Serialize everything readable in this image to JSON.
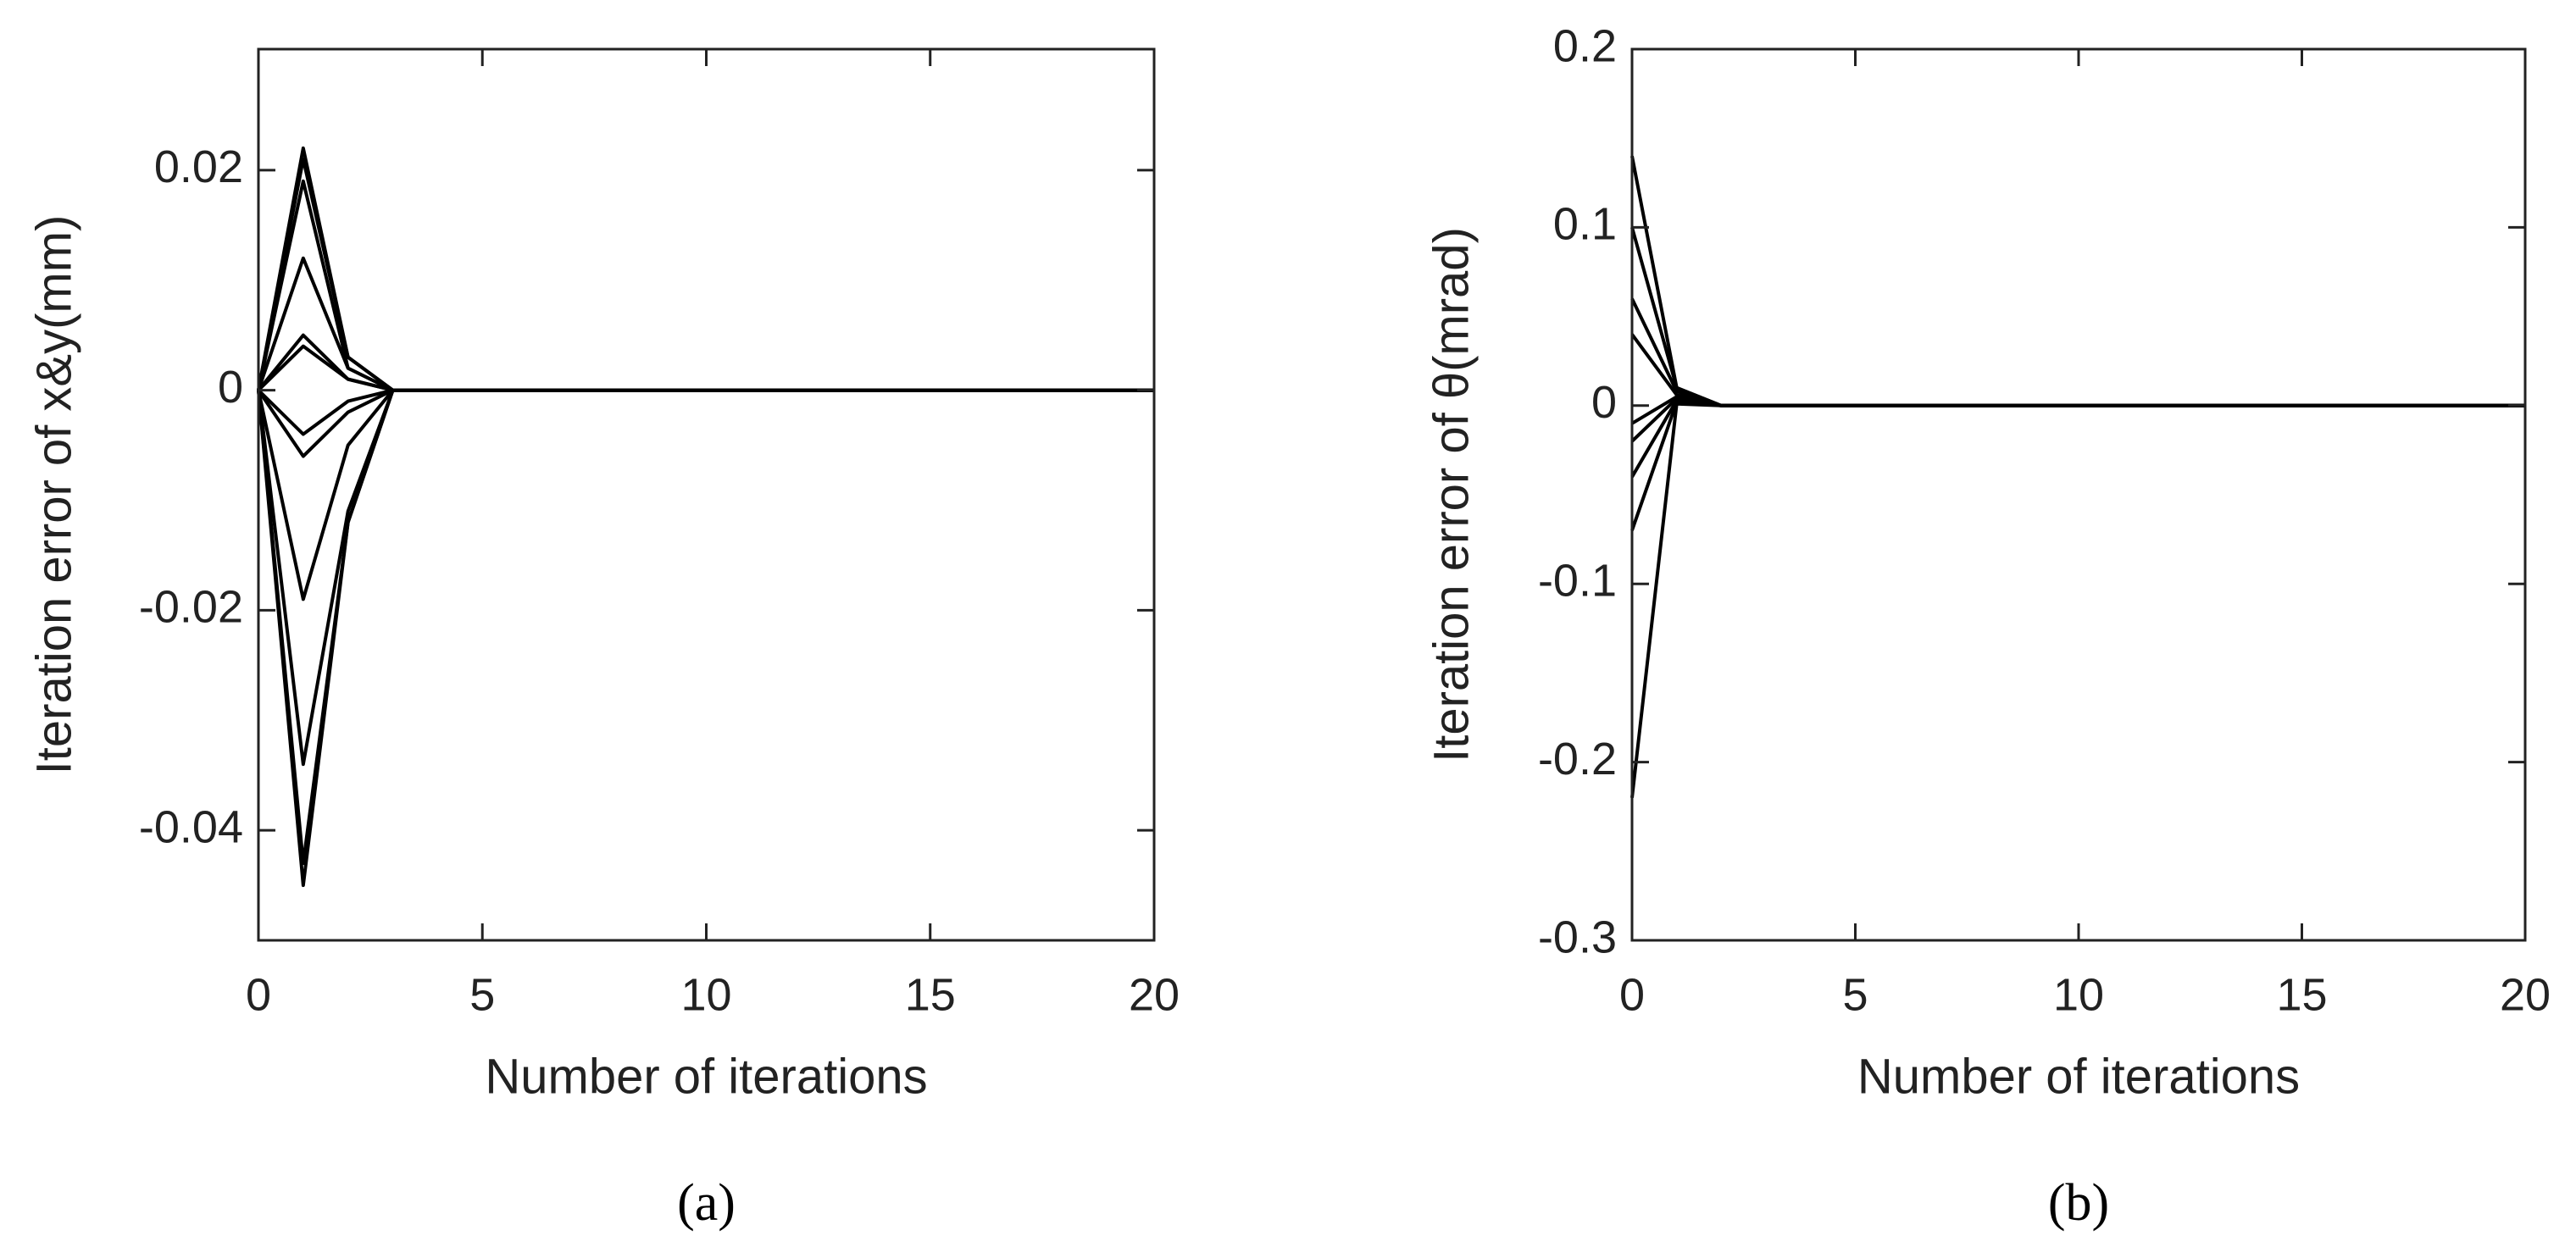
{
  "chart_data": [
    {
      "type": "line",
      "label": "(a)",
      "x_label": "Number of iterations",
      "y_label": "Iteration error of x&y(mm)",
      "x": [
        0,
        1,
        2,
        3,
        4,
        20
      ],
      "xlim": [
        0,
        20
      ],
      "xticks": [
        0,
        5,
        10,
        15,
        20
      ],
      "ylim": [
        -0.05,
        0.031
      ],
      "yticks": [
        -0.04,
        -0.02,
        0,
        0.02
      ],
      "color": "#000000",
      "series": [
        {
          "values": [
            0,
            0.022,
            0.003,
            0,
            0,
            0
          ]
        },
        {
          "values": [
            0,
            0.021,
            0.003,
            0,
            0,
            0
          ]
        },
        {
          "values": [
            0,
            0.019,
            0.002,
            0,
            0,
            0
          ]
        },
        {
          "values": [
            0,
            0.012,
            0.002,
            0,
            0,
            0
          ]
        },
        {
          "values": [
            0,
            0.005,
            0.001,
            0,
            0,
            0
          ]
        },
        {
          "values": [
            0,
            0.004,
            0.001,
            0,
            0,
            0
          ]
        },
        {
          "values": [
            0,
            -0.004,
            -0.001,
            0,
            0,
            0
          ]
        },
        {
          "values": [
            0,
            -0.006,
            -0.002,
            0,
            0,
            0
          ]
        },
        {
          "values": [
            0,
            -0.019,
            -0.005,
            0,
            0,
            0
          ]
        },
        {
          "values": [
            0,
            -0.034,
            -0.011,
            0,
            0,
            0
          ]
        },
        {
          "values": [
            0,
            -0.043,
            -0.012,
            0,
            0,
            0
          ]
        },
        {
          "values": [
            0,
            -0.045,
            -0.012,
            0,
            0,
            0
          ]
        }
      ]
    },
    {
      "type": "line",
      "label": "(b)",
      "x_label": "Number of iterations",
      "y_label": "Iteration error of θ(mrad)",
      "x": [
        0,
        1,
        2,
        20
      ],
      "xlim": [
        0,
        20
      ],
      "xticks": [
        0,
        5,
        10,
        15,
        20
      ],
      "ylim": [
        -0.3,
        0.2
      ],
      "yticks": [
        -0.3,
        -0.2,
        -0.1,
        0,
        0.1,
        0.2
      ],
      "color": "#000000",
      "series": [
        {
          "values": [
            0.14,
            0.01,
            0,
            0
          ]
        },
        {
          "values": [
            0.1,
            0.01,
            0,
            0
          ]
        },
        {
          "values": [
            0.06,
            0.008,
            0,
            0
          ]
        },
        {
          "values": [
            0.04,
            0.006,
            0,
            0
          ]
        },
        {
          "values": [
            -0.01,
            0.005,
            0,
            0
          ]
        },
        {
          "values": [
            -0.02,
            0.004,
            0,
            0
          ]
        },
        {
          "values": [
            -0.04,
            0.003,
            0,
            0
          ]
        },
        {
          "values": [
            -0.07,
            0.002,
            0,
            0
          ]
        },
        {
          "values": [
            -0.22,
            0.001,
            0,
            0
          ]
        }
      ]
    }
  ]
}
